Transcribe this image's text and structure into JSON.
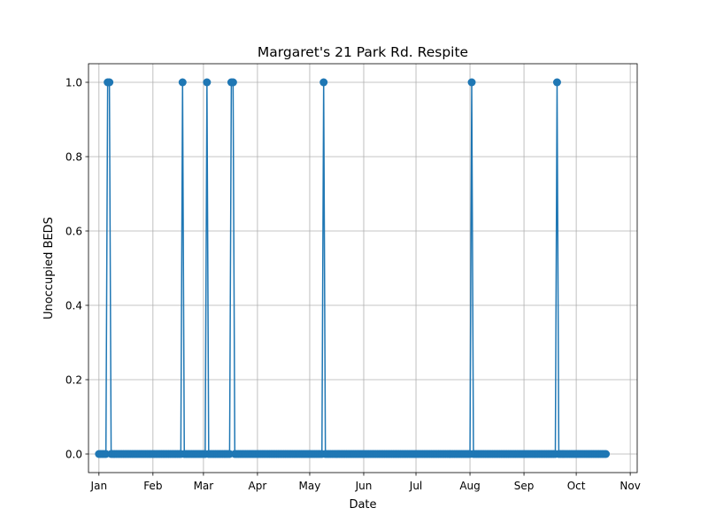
{
  "chart_data": {
    "type": "line",
    "title": "Margaret's 21 Park Rd. Respite",
    "xlabel": "Date",
    "ylabel": "Unoccupied BEDS",
    "x_axis_type": "date",
    "xlim": [
      "2023-12-26",
      "2024-11-05"
    ],
    "ylim": [
      -0.05,
      1.05
    ],
    "x_ticks": [
      {
        "date": "2024-01-01",
        "label": "Jan"
      },
      {
        "date": "2024-02-01",
        "label": "Feb"
      },
      {
        "date": "2024-03-01",
        "label": "Mar"
      },
      {
        "date": "2024-04-01",
        "label": "Apr"
      },
      {
        "date": "2024-05-01",
        "label": "May"
      },
      {
        "date": "2024-06-01",
        "label": "Jun"
      },
      {
        "date": "2024-07-01",
        "label": "Jul"
      },
      {
        "date": "2024-08-01",
        "label": "Aug"
      },
      {
        "date": "2024-09-01",
        "label": "Sep"
      },
      {
        "date": "2024-10-01",
        "label": "Oct"
      },
      {
        "date": "2024-11-01",
        "label": "Nov"
      }
    ],
    "y_ticks": [
      {
        "value": 0.0,
        "label": "0.0"
      },
      {
        "value": 0.2,
        "label": "0.2"
      },
      {
        "value": 0.4,
        "label": "0.4"
      },
      {
        "value": 0.6,
        "label": "0.6"
      },
      {
        "value": 0.8,
        "label": "0.8"
      },
      {
        "value": 1.0,
        "label": "1.0"
      }
    ],
    "grid": true,
    "color": "#1f77b4",
    "marker": "circle",
    "series": [
      {
        "date_range": [
          "2024-01-01",
          "2024-10-18"
        ],
        "baseline_value": 0,
        "points": [
          {
            "date": "2024-01-06",
            "value": 1
          },
          {
            "date": "2024-01-07",
            "value": 1
          },
          {
            "date": "2024-02-18",
            "value": 1
          },
          {
            "date": "2024-03-03",
            "value": 1
          },
          {
            "date": "2024-03-17",
            "value": 1
          },
          {
            "date": "2024-03-18",
            "value": 1
          },
          {
            "date": "2024-05-09",
            "value": 1
          },
          {
            "date": "2024-08-02",
            "value": 1
          },
          {
            "date": "2024-09-20",
            "value": 1
          }
        ]
      }
    ]
  }
}
